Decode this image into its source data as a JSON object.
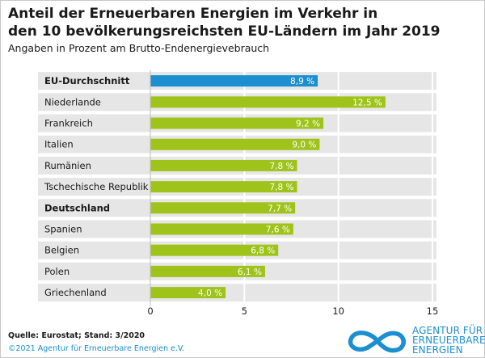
{
  "title_line1": "Anteil der Erneuerbaren Energien im Verkehr in",
  "title_line2": "den 10 bevölkerungsreichsten EU-Ländern im Jahr 2019",
  "subtitle": "Angaben in Prozent am Brutto-Endenergievebrauch",
  "footer": {
    "source": "Quelle: Eurostat; Stand: 3/2020",
    "copyright": "©2021 Agentur für Erneuerbare Energien e.V."
  },
  "logo": {
    "line1": "AGENTUR FÜR",
    "line2": "ERNEUERBARE",
    "line3": "ENERGIEN",
    "icon": "infinity-logo-icon"
  },
  "colors": {
    "highlight": "#1b8fd0",
    "bar": "#9fc31a",
    "row_band": "#e6e6e6",
    "grid": "#ffffff",
    "axis_text": "#1a1a1a"
  },
  "chart_data": {
    "type": "bar",
    "orientation": "horizontal",
    "categories": [
      "EU-Durchschnitt",
      "Niederlande",
      "Frankreich",
      "Italien",
      "Rumänien",
      "Tschechische Republik",
      "Deutschland",
      "Spanien",
      "Belgien",
      "Polen",
      "Griechenland"
    ],
    "values": [
      8.9,
      12.5,
      9.2,
      9.0,
      7.8,
      7.8,
      7.7,
      7.6,
      6.8,
      6.1,
      4.0
    ],
    "value_labels": [
      "8,9 %",
      "12,5 %",
      "9,2 %",
      "9,0 %",
      "7,8 %",
      "7,8 %",
      "7,7 %",
      "7,6 %",
      "6,8 %",
      "6,1 %",
      "4,0 %"
    ],
    "bold_categories": [
      "EU-Durchschnitt",
      "Deutschland"
    ],
    "highlight_category": "EU-Durchschnitt",
    "xlim": [
      0,
      15
    ],
    "xticks": [
      0,
      5,
      10,
      15
    ],
    "xtick_labels": [
      "0",
      "5",
      "10",
      "15"
    ],
    "grid": true
  }
}
